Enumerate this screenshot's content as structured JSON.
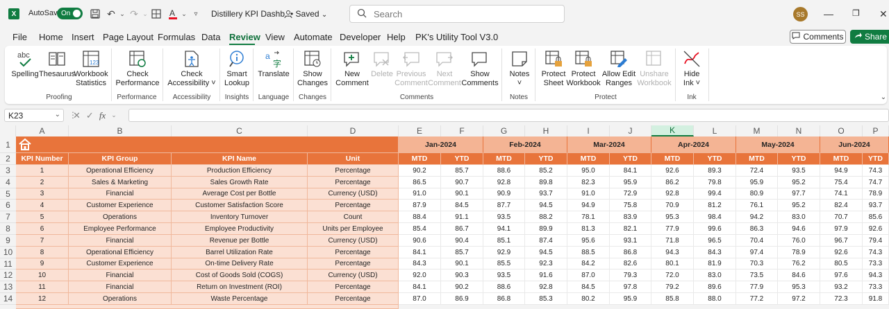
{
  "titlebar": {
    "app_icon": "X",
    "autosave_label": "AutoSave",
    "autosave_state": "On",
    "doc_title": "Distillery KPI Dashb...",
    "saved_label": "• Saved",
    "search_placeholder": "Search",
    "avatar_initials": "SS"
  },
  "menu": {
    "tabs": [
      "File",
      "Home",
      "Insert",
      "Page Layout",
      "Formulas",
      "Data",
      "Review",
      "View",
      "Automate",
      "Developer",
      "Help",
      "PK's Utility Tool V3.0"
    ],
    "active": "Review",
    "comments_label": "Comments",
    "share_label": "Share"
  },
  "ribbon": {
    "buttons": [
      {
        "id": "spelling",
        "label": "Spelling"
      },
      {
        "id": "thesaurus",
        "label": "Thesaurus"
      },
      {
        "id": "workbook-statistics",
        "label": "Workbook\nStatistics"
      },
      {
        "id": "check-performance",
        "label": "Check\nPerformance"
      },
      {
        "id": "check-accessibility",
        "label": "Check\nAccessibility ˅"
      },
      {
        "id": "smart-lookup",
        "label": "Smart\nLookup"
      },
      {
        "id": "translate",
        "label": "Translate"
      },
      {
        "id": "show-changes",
        "label": "Show\nChanges"
      },
      {
        "id": "new-comment",
        "label": "New\nComment"
      },
      {
        "id": "delete",
        "label": "Delete"
      },
      {
        "id": "previous-comment",
        "label": "Previous\nComment"
      },
      {
        "id": "next-comment",
        "label": "Next\nComment"
      },
      {
        "id": "show-comments",
        "label": "Show\nComments"
      },
      {
        "id": "notes",
        "label": "Notes\n˅"
      },
      {
        "id": "protect-sheet",
        "label": "Protect\nSheet"
      },
      {
        "id": "protect-workbook",
        "label": "Protect\nWorkbook"
      },
      {
        "id": "allow-edit-ranges",
        "label": "Allow Edit\nRanges"
      },
      {
        "id": "unshare-workbook",
        "label": "Unshare\nWorkbook"
      },
      {
        "id": "hide-ink",
        "label": "Hide\nInk ˅"
      }
    ],
    "groups": [
      "Proofing",
      "Performance",
      "Accessibility",
      "Insights",
      "Language",
      "Changes",
      "Comments",
      "Notes",
      "Protect",
      "Ink"
    ]
  },
  "formula_bar": {
    "name_box": "K23",
    "fx_label": "fx",
    "formula": ""
  },
  "grid": {
    "columns": [
      "A",
      "B",
      "C",
      "D",
      "E",
      "F",
      "G",
      "H",
      "I",
      "J",
      "K",
      "L",
      "M",
      "N",
      "O",
      "P"
    ],
    "selected_column": "K",
    "rows": [
      "1",
      "2",
      "3",
      "4",
      "5",
      "6",
      "7",
      "8",
      "9",
      "10",
      "11",
      "12",
      "13",
      "14"
    ],
    "months": [
      "Jan-2024",
      "Feb-2024",
      "Mar-2024",
      "Apr-2024",
      "May-2024",
      "Jun-2024"
    ],
    "header": [
      "KPI Number",
      "KPI Group",
      "KPI Name",
      "Unit"
    ],
    "sub_headers": [
      "MTD",
      "YTD"
    ],
    "data": [
      [
        "1",
        "Operational Efficiency",
        "Production Efficiency",
        "Percentage",
        "90.2",
        "85.7",
        "88.6",
        "85.2",
        "95.0",
        "84.1",
        "92.6",
        "89.3",
        "72.4",
        "93.5",
        "94.9",
        "74.3"
      ],
      [
        "2",
        "Sales & Marketing",
        "Sales Growth Rate",
        "Percentage",
        "86.5",
        "90.7",
        "92.8",
        "89.8",
        "82.3",
        "95.9",
        "86.2",
        "79.8",
        "95.9",
        "95.2",
        "75.4",
        "74.7"
      ],
      [
        "3",
        "Financial",
        "Average Cost per Bottle",
        "Currency (USD)",
        "91.0",
        "90.1",
        "90.9",
        "93.7",
        "91.0",
        "72.9",
        "92.8",
        "99.4",
        "80.9",
        "97.7",
        "74.1",
        "78.9"
      ],
      [
        "4",
        "Customer Experience",
        "Customer Satisfaction Score",
        "Percentage",
        "87.9",
        "84.5",
        "87.7",
        "94.5",
        "94.9",
        "75.8",
        "70.9",
        "81.2",
        "76.1",
        "95.2",
        "82.4",
        "93.7"
      ],
      [
        "5",
        "Operations",
        "Inventory Turnover",
        "Count",
        "88.4",
        "91.1",
        "93.5",
        "88.2",
        "78.1",
        "83.9",
        "95.3",
        "98.4",
        "94.2",
        "83.0",
        "70.7",
        "85.6"
      ],
      [
        "6",
        "Employee Performance",
        "Employee Productivity",
        "Units per Employee",
        "85.4",
        "86.7",
        "94.1",
        "89.9",
        "81.3",
        "82.1",
        "77.9",
        "99.6",
        "86.3",
        "94.6",
        "97.9",
        "92.6"
      ],
      [
        "7",
        "Financial",
        "Revenue per Bottle",
        "Currency (USD)",
        "90.6",
        "90.4",
        "85.1",
        "87.4",
        "95.6",
        "93.1",
        "71.8",
        "96.5",
        "70.4",
        "76.0",
        "96.7",
        "79.4"
      ],
      [
        "8",
        "Operational Efficiency",
        "Barrel Utilization Rate",
        "Percentage",
        "84.1",
        "85.7",
        "92.9",
        "94.5",
        "88.5",
        "86.8",
        "94.3",
        "84.3",
        "97.4",
        "78.9",
        "92.6",
        "74.3"
      ],
      [
        "9",
        "Customer Experience",
        "On-time Delivery Rate",
        "Percentage",
        "84.3",
        "90.1",
        "85.5",
        "92.3",
        "84.2",
        "82.6",
        "80.1",
        "81.9",
        "70.3",
        "76.2",
        "80.5",
        "73.3"
      ],
      [
        "10",
        "Financial",
        "Cost of Goods Sold (COGS)",
        "Currency (USD)",
        "92.0",
        "90.3",
        "93.5",
        "91.6",
        "87.0",
        "79.3",
        "72.0",
        "83.0",
        "73.5",
        "84.6",
        "97.6",
        "94.3"
      ],
      [
        "11",
        "Financial",
        "Return on Investment (ROI)",
        "Percentage",
        "84.1",
        "90.2",
        "88.6",
        "92.8",
        "84.5",
        "97.8",
        "79.2",
        "89.6",
        "77.9",
        "95.3",
        "93.2",
        "73.3"
      ],
      [
        "12",
        "Operations",
        "Waste Percentage",
        "Percentage",
        "87.0",
        "86.9",
        "86.8",
        "85.3",
        "80.2",
        "95.9",
        "85.8",
        "88.0",
        "77.2",
        "97.2",
        "72.3",
        "91.8"
      ]
    ]
  }
}
